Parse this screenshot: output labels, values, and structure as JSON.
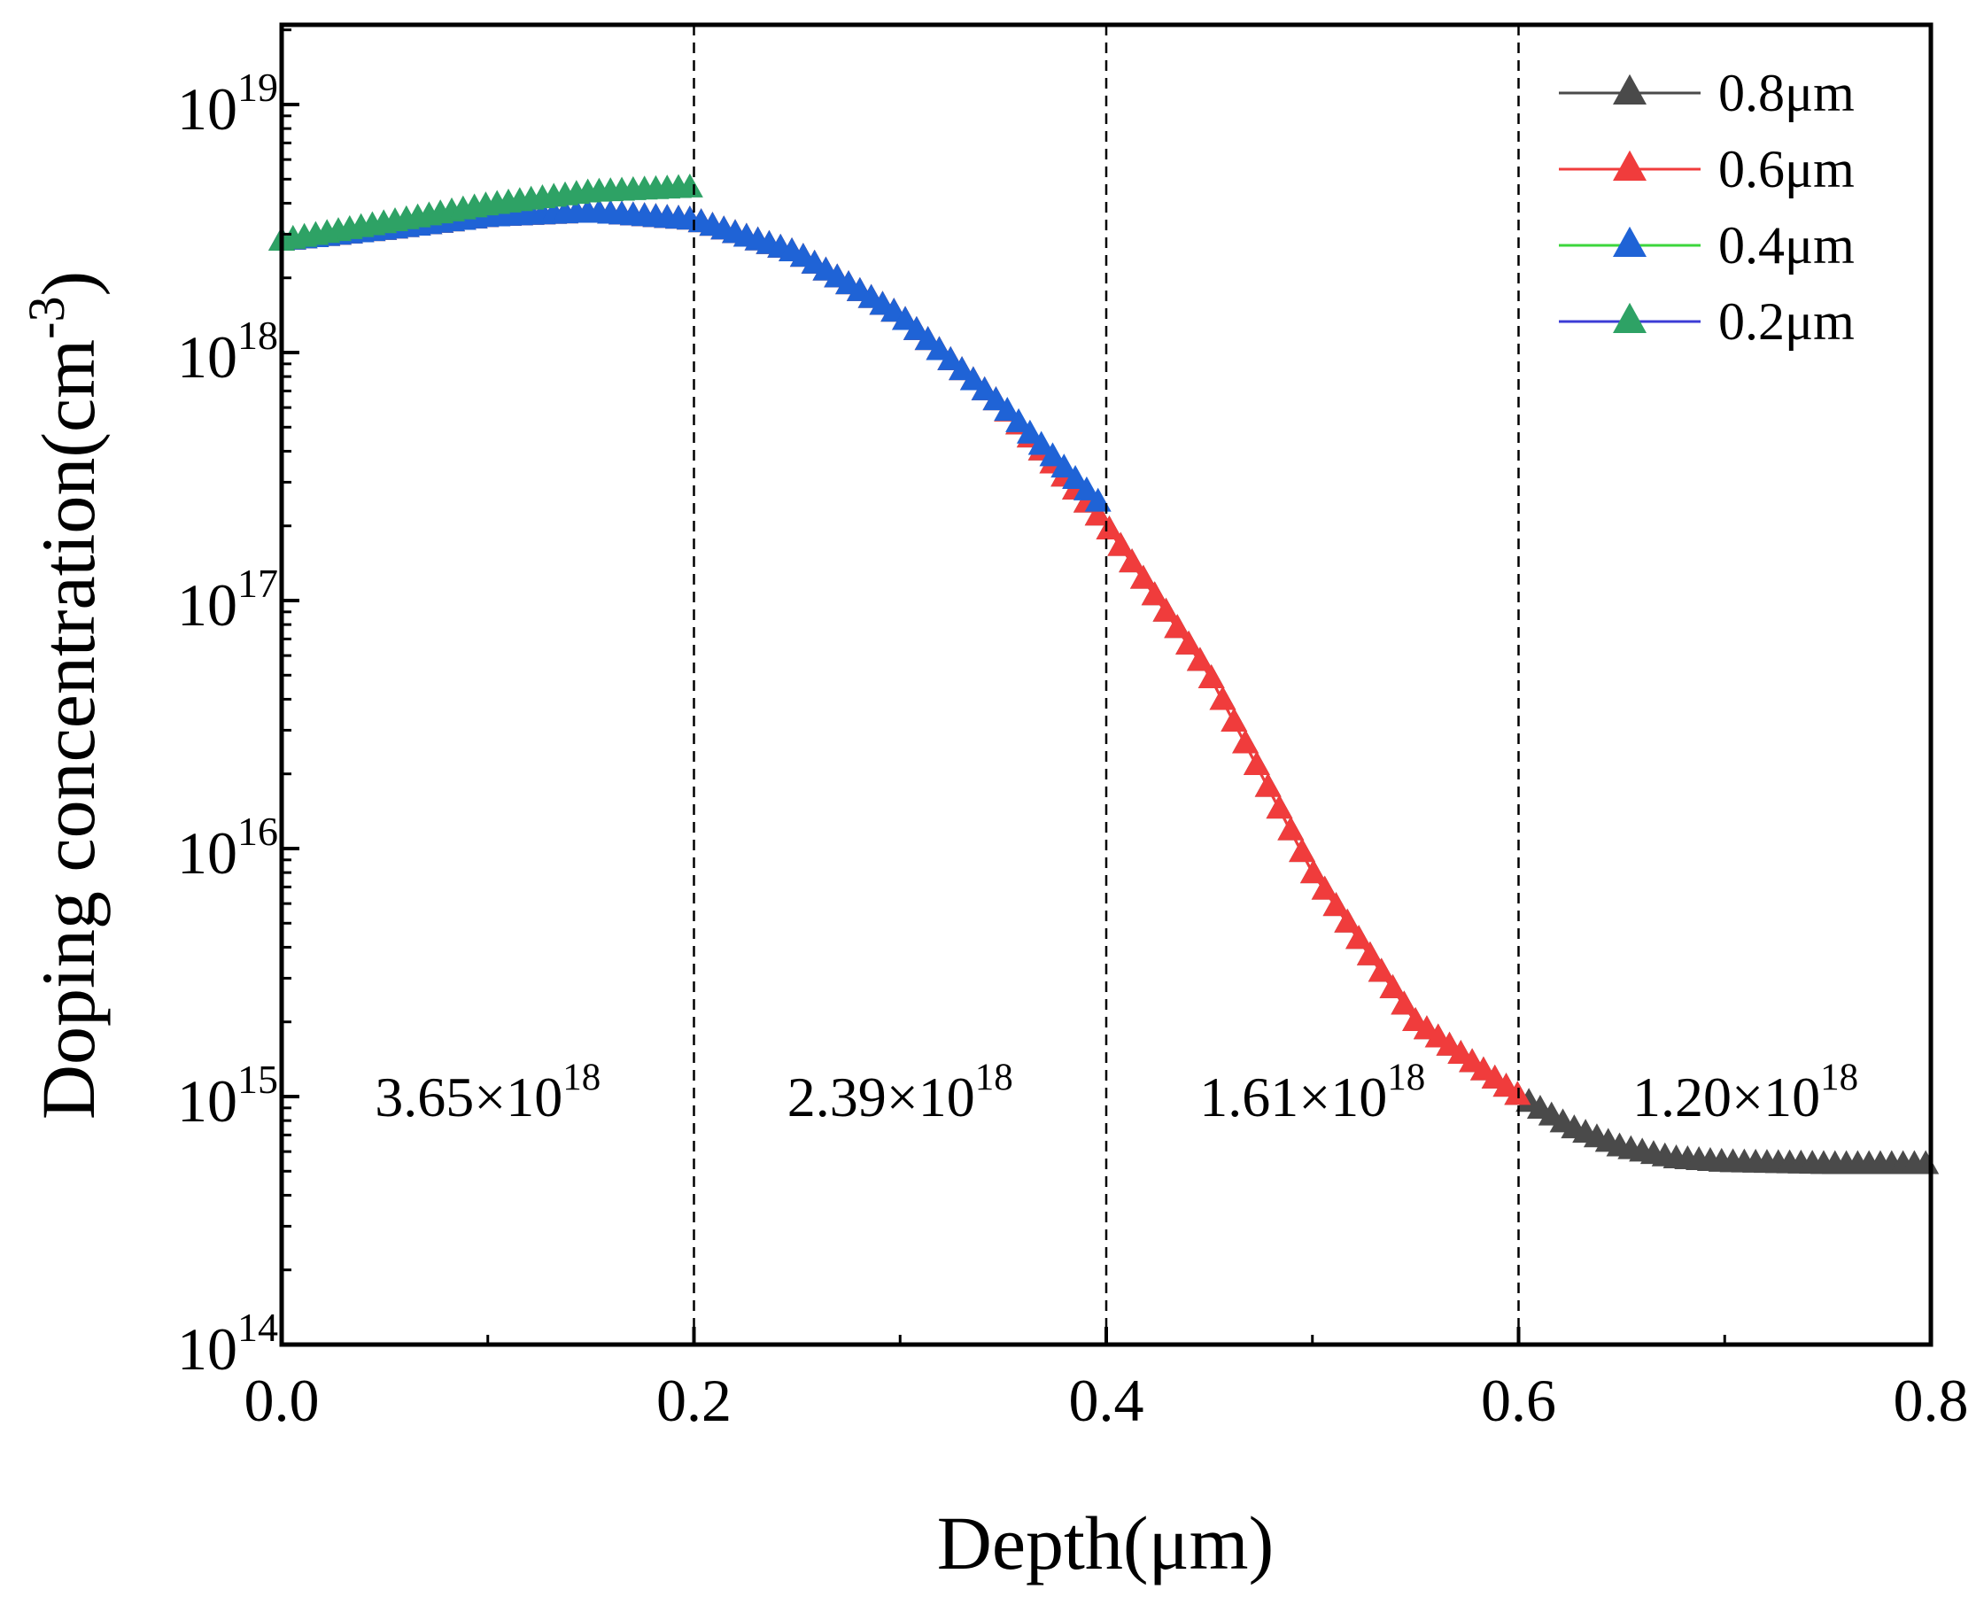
{
  "chart_data": {
    "type": "line",
    "x_scale": "linear",
    "y_scale": "log",
    "xlabel": "Depth(μm)",
    "ylabel_main": "Doping concentration(cm",
    "ylabel_sup": "-3",
    "ylabel_close": ")",
    "xlim": [
      0.0,
      0.8
    ],
    "ylim": [
      100000000000000.0,
      2e+19
    ],
    "x_ticks": [
      {
        "value": 0.0,
        "label": "0.0"
      },
      {
        "value": 0.2,
        "label": "0.2"
      },
      {
        "value": 0.4,
        "label": "0.4"
      },
      {
        "value": 0.6,
        "label": "0.6"
      },
      {
        "value": 0.8,
        "label": "0.8"
      }
    ],
    "y_ticks": [
      {
        "value": 100000000000000.0,
        "base": "10",
        "exp": "14"
      },
      {
        "value": 1000000000000000.0,
        "base": "10",
        "exp": "15"
      },
      {
        "value": 1e+16,
        "base": "10",
        "exp": "16"
      },
      {
        "value": 1e+17,
        "base": "10",
        "exp": "17"
      },
      {
        "value": 1e+18,
        "base": "10",
        "exp": "18"
      },
      {
        "value": 1e+19,
        "base": "10",
        "exp": "19"
      }
    ],
    "vlines": [
      0.2,
      0.4,
      0.6
    ],
    "marker": "triangle",
    "series": [
      {
        "name": "0.8μm",
        "color": "#4a4a4a",
        "x_end": 0.8,
        "x": [
          0,
          0.05,
          0.1,
          0.15,
          0.2,
          0.25,
          0.3,
          0.35,
          0.4,
          0.45,
          0.5,
          0.55,
          0.6,
          0.625,
          0.65,
          0.675,
          0.7,
          0.75,
          0.8
        ],
        "y": [
          2.8e+18,
          3.1e+18,
          3.5e+18,
          3.65e+18,
          3.4e+18,
          2.5e+18,
          1.4e+18,
          6e+17,
          2e+17,
          5e+16,
          8000000000000000.0,
          2000000000000000.0,
          1000000000000000.0,
          750000000000000.0,
          620000000000000.0,
          560000000000000.0,
          540000000000000.0,
          530000000000000.0,
          530000000000000.0
        ]
      },
      {
        "name": "0.6μm",
        "color": "#f03c3c",
        "x_end": 0.6,
        "x": [
          0,
          0.05,
          0.1,
          0.15,
          0.2,
          0.25,
          0.3,
          0.35,
          0.4,
          0.45,
          0.5,
          0.55,
          0.6
        ],
        "y": [
          2.8e+18,
          3.1e+18,
          3.5e+18,
          3.65e+18,
          3.4e+18,
          2.5e+18,
          1.4e+18,
          6e+17,
          2e+17,
          5e+16,
          8000000000000000.0,
          2000000000000000.0,
          1000000000000000.0
        ]
      },
      {
        "name": "0.4μm",
        "color": "#1f63d6",
        "x_end": 0.4,
        "x": [
          0,
          0.05,
          0.1,
          0.15,
          0.2,
          0.25,
          0.3,
          0.35,
          0.4
        ],
        "y": [
          2.8e+18,
          3.1e+18,
          3.5e+18,
          3.65e+18,
          3.4e+18,
          2.5e+18,
          1.4e+18,
          6e+17,
          2.3e+17
        ]
      },
      {
        "name": "0.2μm",
        "color": "#2ea265",
        "x_end": 0.2,
        "x": [
          0,
          0.05,
          0.1,
          0.15,
          0.2
        ],
        "y": [
          2.8e+18,
          3.3e+18,
          3.9e+18,
          4.4e+18,
          4.6e+18
        ]
      }
    ],
    "legend_line_colors": [
      "#4a4a4a",
      "#f03c3c",
      "#3cd63c",
      "#3c3cd6"
    ],
    "legend_placement": "top-right",
    "annotations": [
      {
        "x": 0.1,
        "y": 1000000000000000.0,
        "mantissa": "3.65×10",
        "exp": "18"
      },
      {
        "x": 0.3,
        "y": 1000000000000000.0,
        "mantissa": "2.39×10",
        "exp": "18"
      },
      {
        "x": 0.5,
        "y": 1000000000000000.0,
        "mantissa": "1.61×10",
        "exp": "18"
      },
      {
        "x": 0.71,
        "y": 1000000000000000.0,
        "mantissa": "1.20×10",
        "exp": "18"
      }
    ]
  }
}
